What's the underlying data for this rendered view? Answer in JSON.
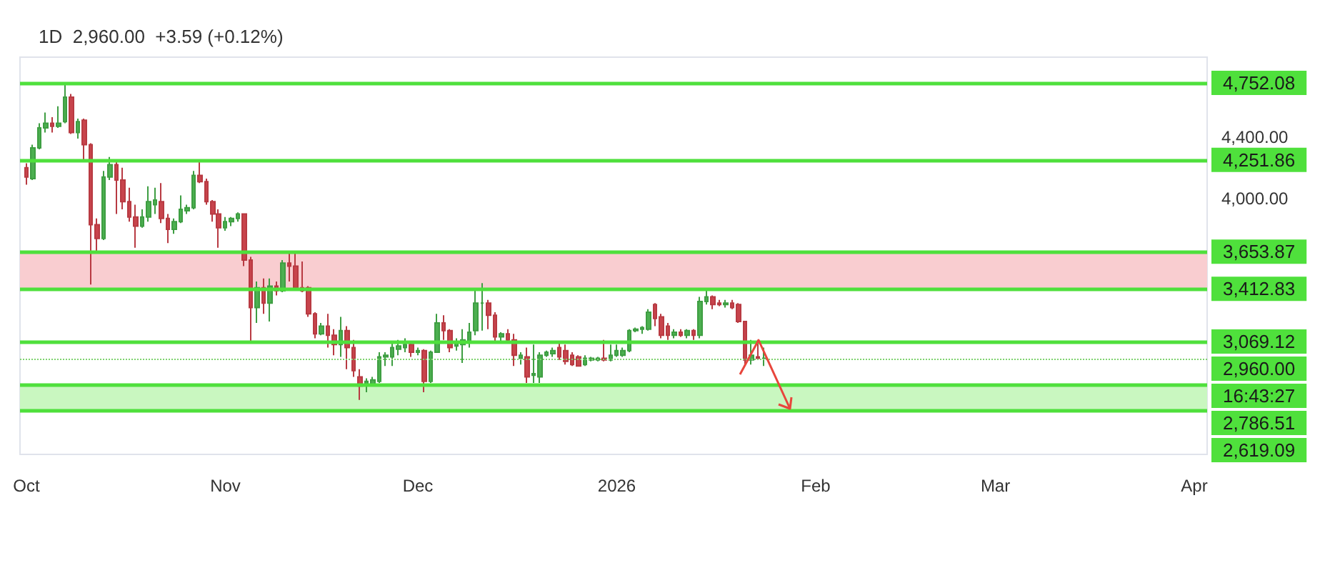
{
  "chart_data": {
    "type": "candlestick",
    "title": "1D  2,960.00  +3.59 (+0.12%)",
    "x": [
      "2025-10-01",
      "2025-10-02",
      "2025-10-03",
      "2025-10-04",
      "2025-10-05",
      "2025-10-06",
      "2025-10-07",
      "2025-10-08",
      "2025-10-09",
      "2025-10-10",
      "2025-10-11",
      "2025-10-12",
      "2025-10-13",
      "2025-10-14",
      "2025-10-15",
      "2025-10-16",
      "2025-10-17",
      "2025-10-18",
      "2025-10-19",
      "2025-10-20",
      "2025-10-21",
      "2025-10-22",
      "2025-10-23",
      "2025-10-24",
      "2025-10-25",
      "2025-10-26",
      "2025-10-27",
      "2025-10-28",
      "2025-10-29",
      "2025-10-30",
      "2025-10-31",
      "2025-11-01",
      "2025-11-02",
      "2025-11-03",
      "2025-11-04",
      "2025-11-05",
      "2025-11-06",
      "2025-11-07",
      "2025-11-08",
      "2025-11-09",
      "2025-11-10",
      "2025-11-11",
      "2025-11-12",
      "2025-11-13",
      "2025-11-14",
      "2025-11-15",
      "2025-11-16",
      "2025-11-17",
      "2025-11-18",
      "2025-11-19",
      "2025-11-20",
      "2025-11-21",
      "2025-11-22",
      "2025-11-23",
      "2025-11-24",
      "2025-11-25",
      "2025-11-26",
      "2025-11-27",
      "2025-11-28",
      "2025-11-29",
      "2025-11-30",
      "2025-12-01",
      "2025-12-02",
      "2025-12-03",
      "2025-12-04",
      "2025-12-05",
      "2025-12-06",
      "2025-12-07",
      "2025-12-08",
      "2025-12-09",
      "2025-12-10",
      "2025-12-11",
      "2025-12-12",
      "2025-12-13",
      "2025-12-14",
      "2025-12-15",
      "2025-12-16",
      "2025-12-17",
      "2025-12-18",
      "2025-12-19",
      "2025-12-20",
      "2025-12-21",
      "2025-12-22",
      "2025-12-23",
      "2025-12-24",
      "2025-12-25",
      "2025-12-26",
      "2025-12-27",
      "2025-12-28",
      "2025-12-29",
      "2025-12-30",
      "2025-12-31",
      "2026-01-01",
      "2026-01-02",
      "2026-01-03",
      "2026-01-04",
      "2026-01-05",
      "2026-01-06",
      "2026-01-07",
      "2026-01-08",
      "2026-01-09",
      "2026-01-10",
      "2026-01-11",
      "2026-01-12",
      "2026-01-13",
      "2026-01-14",
      "2026-01-15",
      "2026-01-16",
      "2026-01-17",
      "2026-01-18",
      "2026-01-19",
      "2026-01-20",
      "2026-01-21",
      "2026-01-22",
      "2026-01-23",
      "2026-01-24"
    ],
    "ohlc": [
      [
        4200,
        4230,
        4090,
        4140
      ],
      [
        4130,
        4350,
        4120,
        4330
      ],
      [
        4330,
        4490,
        4320,
        4460
      ],
      [
        4460,
        4560,
        4430,
        4490
      ],
      [
        4490,
        4530,
        4430,
        4470
      ],
      [
        4470,
        4600,
        4460,
        4490
      ],
      [
        4500,
        4750,
        4490,
        4660
      ],
      [
        4660,
        4680,
        4420,
        4430
      ],
      [
        4430,
        4520,
        4390,
        4500
      ],
      [
        4510,
        4520,
        4250,
        4350
      ],
      [
        4350,
        4360,
        3440,
        3830
      ],
      [
        3830,
        3870,
        3650,
        3740
      ],
      [
        3740,
        4180,
        3730,
        4140
      ],
      [
        4140,
        4270,
        4120,
        4220
      ],
      [
        4220,
        4240,
        3900,
        4120
      ],
      [
        4120,
        4200,
        3930,
        3980
      ],
      [
        3980,
        4070,
        3850,
        3880
      ],
      [
        3880,
        3960,
        3680,
        3820
      ],
      [
        3820,
        3930,
        3810,
        3880
      ],
      [
        3880,
        4080,
        3850,
        3980
      ],
      [
        3960,
        4070,
        3900,
        3990
      ],
      [
        3980,
        4100,
        3840,
        3870
      ],
      [
        3870,
        3900,
        3710,
        3800
      ],
      [
        3800,
        3870,
        3770,
        3850
      ],
      [
        3850,
        4020,
        3840,
        3930
      ],
      [
        3920,
        3960,
        3900,
        3940
      ],
      [
        3940,
        4180,
        3930,
        4150
      ],
      [
        4150,
        4250,
        4100,
        4110
      ],
      [
        4110,
        4130,
        3960,
        3980
      ],
      [
        3980,
        3990,
        3850,
        3900
      ],
      [
        3900,
        3930,
        3680,
        3810
      ],
      [
        3810,
        3880,
        3790,
        3850
      ],
      [
        3850,
        3880,
        3820,
        3870
      ],
      [
        3870,
        3910,
        3850,
        3900
      ],
      [
        3900,
        3900,
        3560,
        3600
      ],
      [
        3600,
        3620,
        3070,
        3290
      ],
      [
        3290,
        3460,
        3190,
        3420
      ],
      [
        3420,
        3480,
        3250,
        3320
      ],
      [
        3320,
        3480,
        3200,
        3430
      ],
      [
        3430,
        3460,
        3370,
        3400
      ],
      [
        3400,
        3600,
        3390,
        3580
      ],
      [
        3580,
        3650,
        3460,
        3560
      ],
      [
        3560,
        3650,
        3400,
        3420
      ],
      [
        3420,
        3590,
        3390,
        3400
      ],
      [
        3420,
        3430,
        3230,
        3250
      ],
      [
        3250,
        3260,
        3090,
        3120
      ],
      [
        3120,
        3190,
        3110,
        3170
      ],
      [
        3170,
        3250,
        3030,
        3110
      ],
      [
        3110,
        3150,
        2980,
        3050
      ],
      [
        3050,
        3230,
        2970,
        3140
      ],
      [
        3140,
        3170,
        2890,
        3030
      ],
      [
        3030,
        3080,
        2840,
        2880
      ],
      [
        2840,
        2890,
        2690,
        2780
      ],
      [
        2790,
        2830,
        2740,
        2810
      ],
      [
        2790,
        2840,
        2780,
        2820
      ],
      [
        2810,
        3000,
        2800,
        2970
      ],
      [
        2970,
        3000,
        2910,
        2980
      ],
      [
        2970,
        3060,
        2910,
        3030
      ],
      [
        3020,
        3080,
        2980,
        3040
      ],
      [
        3030,
        3090,
        3000,
        3050
      ],
      [
        3050,
        3060,
        2970,
        3000
      ],
      [
        3000,
        3030,
        2980,
        3010
      ],
      [
        3010,
        3020,
        2740,
        2810
      ],
      [
        2810,
        3010,
        2800,
        3000
      ],
      [
        3000,
        3250,
        3000,
        3190
      ],
      [
        3190,
        3240,
        3080,
        3140
      ],
      [
        3140,
        3150,
        3000,
        3030
      ],
      [
        3040,
        3090,
        3010,
        3060
      ],
      [
        3050,
        3150,
        2930,
        3080
      ],
      [
        3070,
        3190,
        3030,
        3130
      ],
      [
        3140,
        3400,
        3110,
        3320
      ],
      [
        3320,
        3450,
        3140,
        3320
      ],
      [
        3320,
        3340,
        3150,
        3240
      ],
      [
        3240,
        3260,
        3060,
        3100
      ],
      [
        3100,
        3130,
        3070,
        3120
      ],
      [
        3120,
        3150,
        3060,
        3080
      ],
      [
        3080,
        3120,
        2910,
        2980
      ],
      [
        2960,
        3000,
        2920,
        2980
      ],
      [
        2970,
        3030,
        2800,
        2840
      ],
      [
        2850,
        3050,
        2800,
        2860
      ],
      [
        2840,
        3000,
        2800,
        2980
      ],
      [
        2980,
        3010,
        2970,
        3000
      ],
      [
        2990,
        3030,
        2970,
        3010
      ],
      [
        3030,
        3070,
        2950,
        2970
      ],
      [
        3010,
        3050,
        2920,
        2940
      ],
      [
        2980,
        3000,
        2910,
        2920
      ],
      [
        2970,
        2980,
        2910,
        2910
      ],
      [
        2920,
        2980,
        2910,
        2960
      ],
      [
        2950,
        2970,
        2940,
        2960
      ],
      [
        2950,
        2970,
        2940,
        2960
      ],
      [
        2960,
        3080,
        2940,
        2950
      ],
      [
        2950,
        3050,
        2940,
        2980
      ],
      [
        2980,
        3050,
        2970,
        3010
      ],
      [
        2980,
        3030,
        2970,
        3010
      ],
      [
        3010,
        3150,
        3000,
        3140
      ],
      [
        3140,
        3160,
        3130,
        3150
      ],
      [
        3150,
        3170,
        3120,
        3160
      ],
      [
        3150,
        3280,
        3140,
        3260
      ],
      [
        3310,
        3320,
        3170,
        3220
      ],
      [
        3230,
        3250,
        3090,
        3110
      ],
      [
        3170,
        3190,
        3080,
        3110
      ],
      [
        3110,
        3150,
        3090,
        3130
      ],
      [
        3130,
        3150,
        3100,
        3110
      ],
      [
        3110,
        3150,
        3090,
        3140
      ],
      [
        3140,
        3150,
        3080,
        3110
      ],
      [
        3110,
        3360,
        3090,
        3330
      ],
      [
        3330,
        3400,
        3310,
        3360
      ],
      [
        3360,
        3370,
        3280,
        3310
      ],
      [
        3320,
        3340,
        3300,
        3310
      ],
      [
        3310,
        3340,
        3290,
        3320
      ],
      [
        3320,
        3340,
        3280,
        3290
      ],
      [
        3310,
        3320,
        3190,
        3200
      ],
      [
        3200,
        3200,
        2910,
        2950
      ],
      [
        2950,
        3080,
        2920,
        2980
      ],
      [
        2970,
        3080,
        2950,
        2960
      ],
      [
        2960,
        3030,
        2910,
        2960
      ]
    ],
    "xlim": [
      "2025-09-30",
      "2026-04-03"
    ],
    "xticks": [
      {
        "value": "2025-10-01",
        "label": "Oct"
      },
      {
        "value": "2025-11-01",
        "label": "Nov"
      },
      {
        "value": "2025-12-01",
        "label": "Dec"
      },
      {
        "value": "2026-01-01",
        "label": "2026"
      },
      {
        "value": "2026-02-01",
        "label": "Feb"
      },
      {
        "value": "2026-03-01",
        "label": "Mar"
      },
      {
        "value": "2026-04-01",
        "label": "Apr"
      }
    ],
    "ylim": [
      2335,
      4920
    ],
    "yticks": [
      {
        "value": 4000,
        "label": "4,000.00"
      },
      {
        "value": 4400,
        "label": "4,400.00"
      }
    ],
    "ref_lines": [
      {
        "axis": "y",
        "value": 4752.08,
        "label": "4,752.08",
        "color": "#4fe03c"
      },
      {
        "axis": "y",
        "value": 4251.86,
        "label": "4,251.86",
        "color": "#4fe03c"
      },
      {
        "axis": "y",
        "value": 3653.87,
        "label": "3,653.87",
        "color": "#4fe03c"
      },
      {
        "axis": "y",
        "value": 3412.83,
        "label": "3,412.83",
        "color": "#4fe03c"
      },
      {
        "axis": "y",
        "value": 3069.12,
        "label": "3,069.12",
        "color": "#4fe03c"
      },
      {
        "axis": "y",
        "value": 2960,
        "label": "2,960.00",
        "color": "#7fd36f",
        "line_style": "dotted"
      },
      {
        "axis": "y",
        "value": 2786.51,
        "label": "2,786.51",
        "color": "#4fe03c"
      },
      {
        "axis": "y",
        "value": 2619.09,
        "label": "2,619.09",
        "color": "#4fe03c"
      }
    ],
    "bands": [
      {
        "axis": "y",
        "from": 3412.83,
        "to": 3653.87,
        "color": "#f9cdd0"
      },
      {
        "axis": "y",
        "from": 2619.09,
        "to": 2786.51,
        "color": "#c9f7c0"
      }
    ],
    "annotations": [
      "16:43:27"
    ]
  }
}
